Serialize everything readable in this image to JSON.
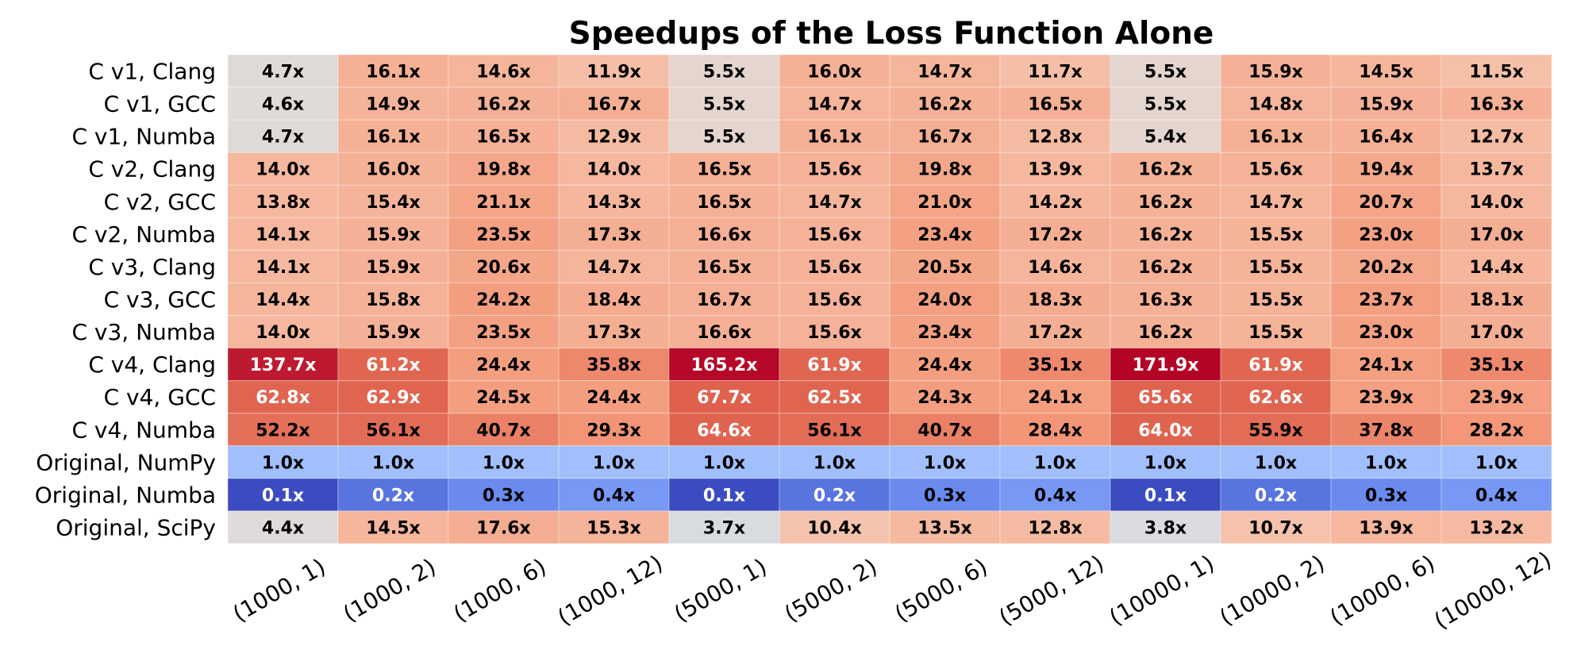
{
  "chart_data": {
    "type": "heatmap",
    "title": "Speedups of the Loss Function Alone",
    "xlabel": "",
    "ylabel": "",
    "value_suffix": "x",
    "columns": [
      "(1000, 1)",
      "(1000, 2)",
      "(1000, 6)",
      "(1000, 12)",
      "(5000, 1)",
      "(5000, 2)",
      "(5000, 6)",
      "(5000, 12)",
      "(10000, 1)",
      "(10000, 2)",
      "(10000, 6)",
      "(10000, 12)"
    ],
    "rows": [
      "C v1, Clang",
      "C v1, GCC",
      "C v1, Numba",
      "C v2, Clang",
      "C v2, GCC",
      "C v2, Numba",
      "C v3, Clang",
      "C v3, GCC",
      "C v3, Numba",
      "C v4, Clang",
      "C v4, GCC",
      "C v4, Numba",
      "Original, NumPy",
      "Original, Numba",
      "Original, SciPy"
    ],
    "values": [
      [
        4.7,
        16.1,
        14.6,
        11.9,
        5.5,
        16.0,
        14.7,
        11.7,
        5.5,
        15.9,
        14.5,
        11.5
      ],
      [
        4.6,
        14.9,
        16.2,
        16.7,
        5.5,
        14.7,
        16.2,
        16.5,
        5.5,
        14.8,
        15.9,
        16.3
      ],
      [
        4.7,
        16.1,
        16.5,
        12.9,
        5.5,
        16.1,
        16.7,
        12.8,
        5.4,
        16.1,
        16.4,
        12.7
      ],
      [
        14.0,
        16.0,
        19.8,
        14.0,
        16.5,
        15.6,
        19.8,
        13.9,
        16.2,
        15.6,
        19.4,
        13.7
      ],
      [
        13.8,
        15.4,
        21.1,
        14.3,
        16.5,
        14.7,
        21.0,
        14.2,
        16.2,
        14.7,
        20.7,
        14.0
      ],
      [
        14.1,
        15.9,
        23.5,
        17.3,
        16.6,
        15.6,
        23.4,
        17.2,
        16.2,
        15.5,
        23.0,
        17.0
      ],
      [
        14.1,
        15.9,
        20.6,
        14.7,
        16.5,
        15.6,
        20.5,
        14.6,
        16.2,
        15.5,
        20.2,
        14.4
      ],
      [
        14.4,
        15.8,
        24.2,
        18.4,
        16.7,
        15.6,
        24.0,
        18.3,
        16.3,
        15.5,
        23.7,
        18.1
      ],
      [
        14.0,
        15.9,
        23.5,
        17.3,
        16.6,
        15.6,
        23.4,
        17.2,
        16.2,
        15.5,
        23.0,
        17.0
      ],
      [
        137.7,
        61.2,
        24.4,
        35.8,
        165.2,
        61.9,
        24.4,
        35.1,
        171.9,
        61.9,
        24.1,
        35.1
      ],
      [
        62.8,
        62.9,
        24.5,
        24.4,
        67.7,
        62.5,
        24.3,
        24.1,
        65.6,
        62.6,
        23.9,
        23.9
      ],
      [
        52.2,
        56.1,
        40.7,
        29.3,
        64.6,
        56.1,
        40.7,
        28.4,
        64.0,
        55.9,
        37.8,
        28.2
      ],
      [
        1.0,
        1.0,
        1.0,
        1.0,
        1.0,
        1.0,
        1.0,
        1.0,
        1.0,
        1.0,
        1.0,
        1.0
      ],
      [
        0.1,
        0.2,
        0.3,
        0.4,
        0.1,
        0.2,
        0.3,
        0.4,
        0.1,
        0.2,
        0.3,
        0.4
      ],
      [
        4.4,
        14.5,
        17.6,
        15.3,
        3.7,
        10.4,
        13.5,
        12.8,
        3.8,
        10.7,
        13.9,
        13.2
      ]
    ],
    "colormap": "coolwarm",
    "color_scale": "log",
    "colorbar": false,
    "grid": false
  }
}
